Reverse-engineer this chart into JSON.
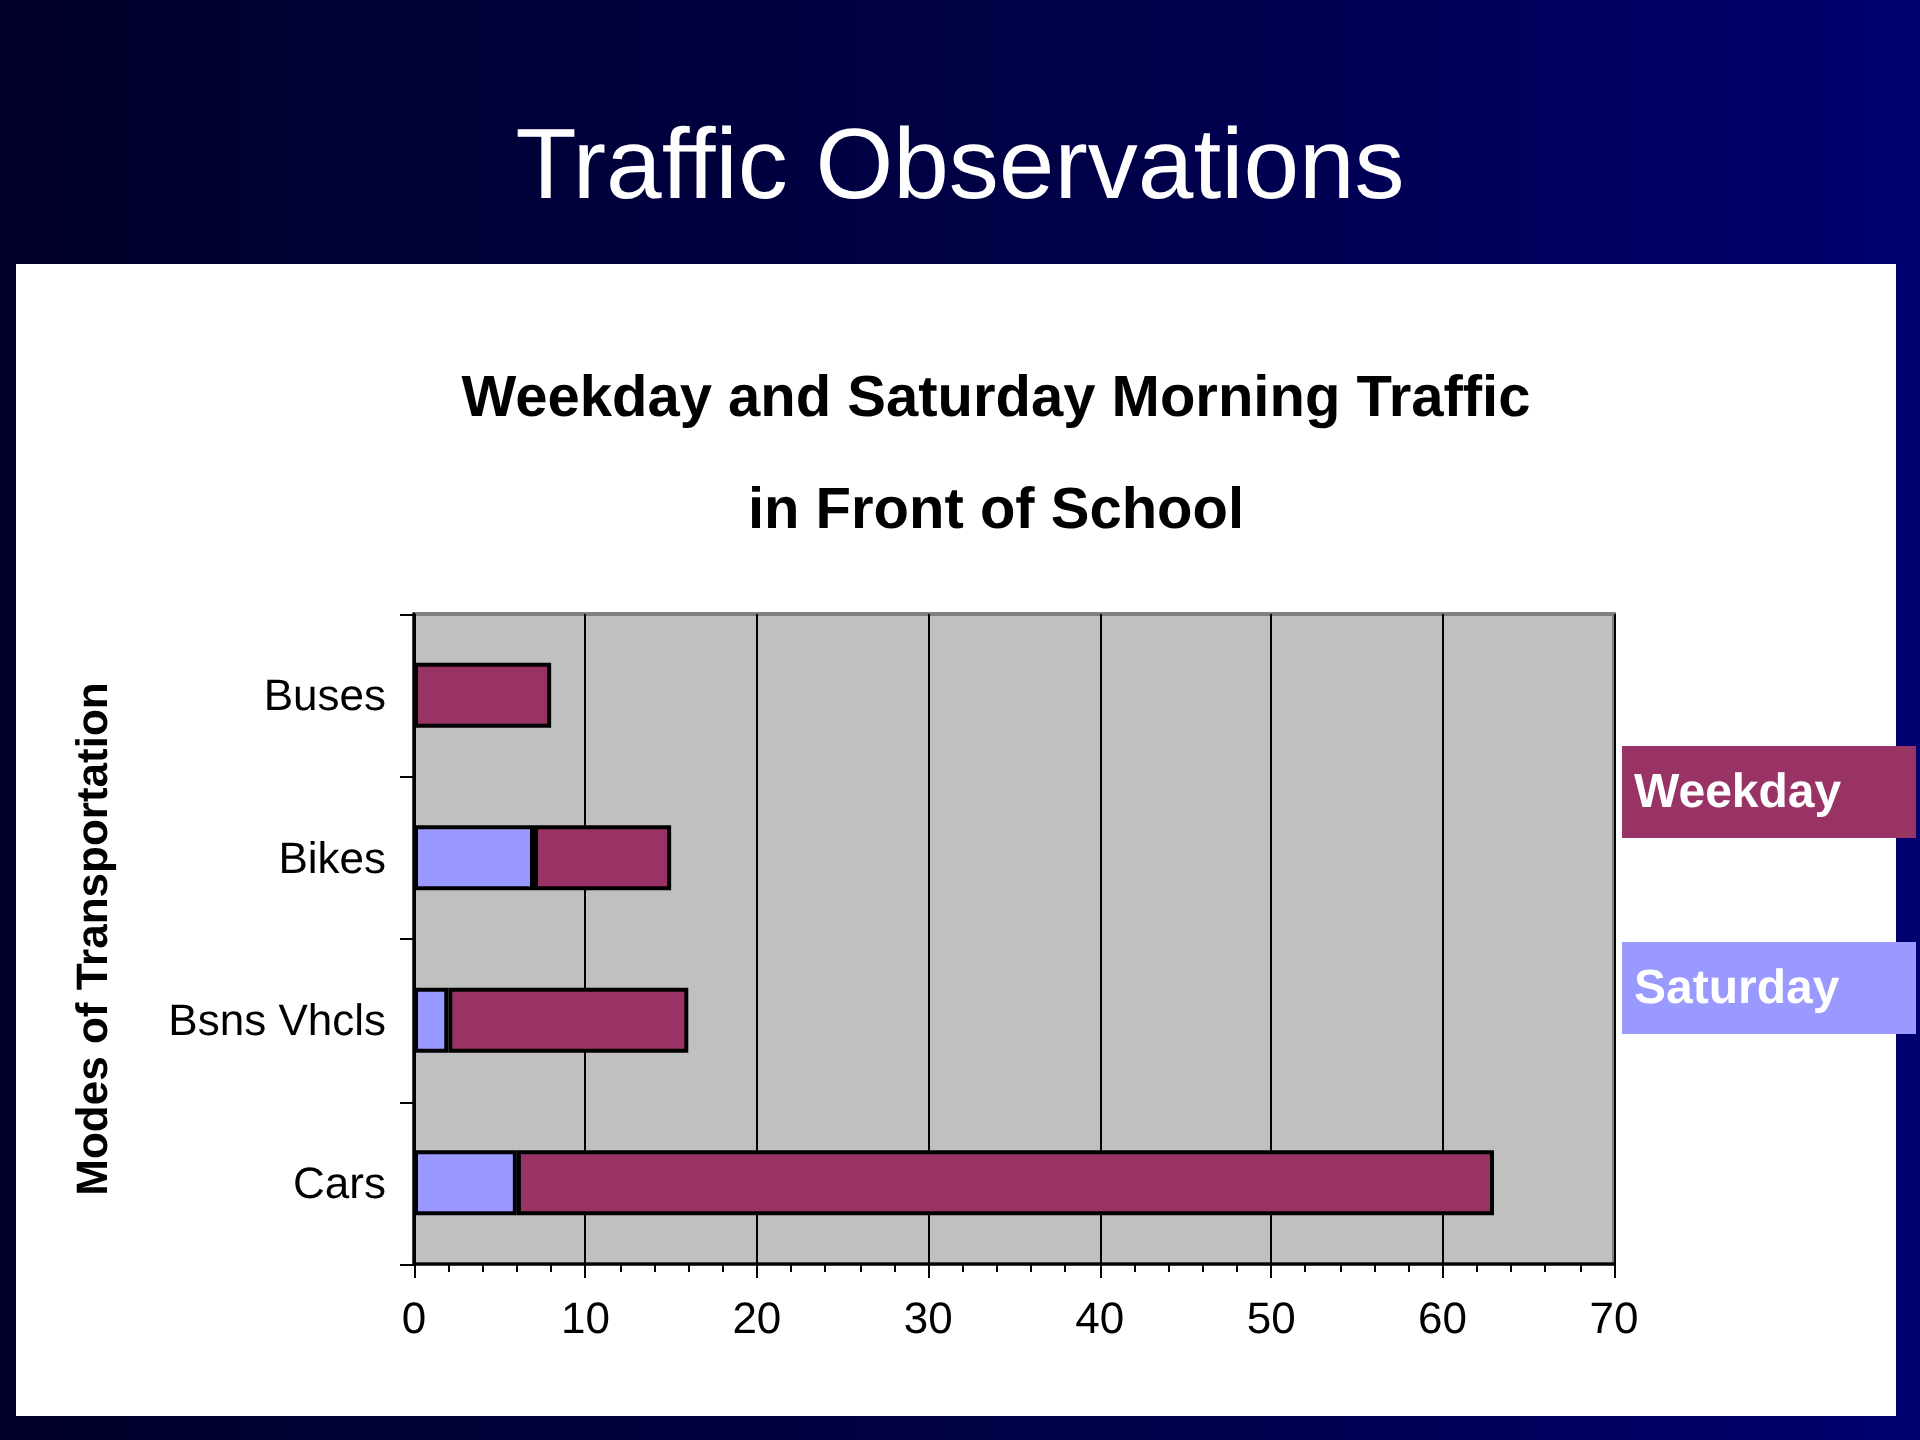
{
  "chart_data": {
    "type": "bar",
    "orientation": "horizontal",
    "stacked": true,
    "title": "Traffic Observations",
    "subtitle": "Weekday and Saturday Morning Traffic\nin Front of School",
    "ylabel": "Modes of Transportation",
    "categories": [
      "Buses",
      "Bikes",
      "Bsns Vhcls",
      "Cars"
    ],
    "series": [
      {
        "name": "Saturday",
        "color": "#9999ff",
        "values": [
          null,
          7,
          2,
          6
        ]
      },
      {
        "name": "Weekday",
        "color": "#993366",
        "values": [
          8,
          8,
          14,
          57
        ]
      }
    ],
    "xlim": [
      0,
      70
    ],
    "xticks": [
      0,
      {
        "value": 2,
        "label": null
      },
      {
        "value": 4,
        "label": null
      },
      {
        "value": 6,
        "label": null
      },
      {
        "value": 8,
        "label": null
      },
      10,
      {
        "value": 12,
        "label": null
      },
      {
        "value": 14,
        "label": null
      },
      {
        "value": 16,
        "label": null
      },
      {
        "value": 18,
        "label": null
      },
      20,
      {
        "value": 22,
        "label": null
      },
      {
        "value": 24,
        "label": null
      },
      {
        "value": 26,
        "label": null
      },
      {
        "value": 28,
        "label": null
      },
      30,
      {
        "value": 32,
        "label": null
      },
      {
        "value": 34,
        "label": null
      },
      {
        "value": 36,
        "label": null
      },
      {
        "value": 38,
        "label": null
      },
      40,
      {
        "value": 42,
        "label": null
      },
      {
        "value": 44,
        "label": null
      },
      {
        "value": 46,
        "label": null
      },
      {
        "value": 48,
        "label": null
      },
      50,
      {
        "value": 52,
        "label": null
      },
      {
        "value": 54,
        "label": null
      },
      {
        "value": 56,
        "label": null
      },
      {
        "value": 58,
        "label": null
      },
      60,
      {
        "value": 62,
        "label": null
      },
      {
        "value": 64,
        "label": null
      },
      {
        "value": 66,
        "label": null
      },
      {
        "value": 68,
        "label": null
      },
      70
    ],
    "grid": "x",
    "legend": "right"
  }
}
